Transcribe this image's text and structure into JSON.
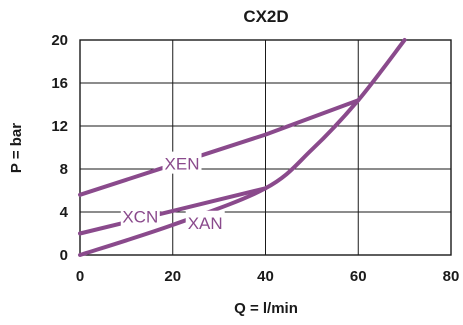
{
  "chart_data": {
    "type": "line",
    "title": "CX2D",
    "xlabel": "Q = l/min",
    "ylabel": "P = bar",
    "xlim": [
      0,
      80
    ],
    "ylim": [
      0,
      20
    ],
    "xticks": [
      0,
      20,
      40,
      60,
      80
    ],
    "yticks": [
      0,
      4,
      8,
      12,
      16,
      20
    ],
    "grid": true,
    "legend": "inline-labels",
    "line_color": "#8a4a8c",
    "series": [
      {
        "name": "XEN",
        "x": [
          0,
          20,
          40,
          60
        ],
        "y": [
          5.6,
          8.4,
          11.2,
          14.4
        ]
      },
      {
        "name": "XCN",
        "x": [
          0,
          20,
          40
        ],
        "y": [
          2.0,
          4.1,
          6.2
        ]
      },
      {
        "name": "XAN",
        "x": [
          0,
          20,
          40,
          50,
          60,
          70
        ],
        "y": [
          0,
          2.8,
          6.2,
          9.8,
          14.4,
          20.0
        ]
      }
    ]
  }
}
